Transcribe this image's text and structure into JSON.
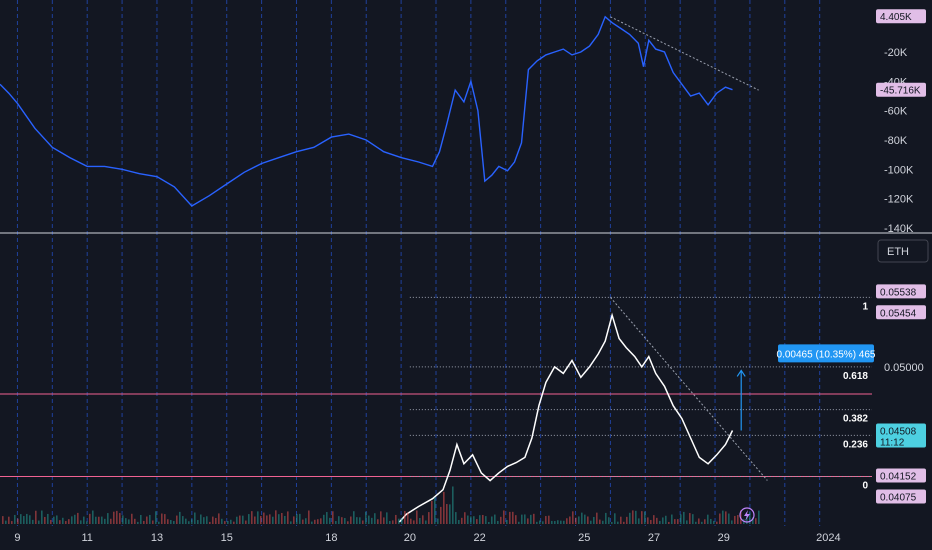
{
  "chart_data": [
    {
      "type": "line",
      "title": "",
      "xlabel": "",
      "ylabel": "",
      "ylim": [
        -140000,
        10000
      ],
      "y_ticks": [
        "-20K",
        "-40K",
        "-60K",
        "-80K",
        "-100K",
        "-120K",
        "-140K"
      ],
      "y_tick_values": [
        -20000,
        -40000,
        -60000,
        -80000,
        -100000,
        -120000,
        -140000
      ],
      "price_tags": [
        {
          "label": "4.405K",
          "value": 4405,
          "color": "#e1bee7"
        },
        {
          "label": "-45.716K",
          "value": -45716,
          "color": "#e1bee7"
        }
      ],
      "series": [
        {
          "color": "#2962ff",
          "points": [
            [
              0,
              -42000
            ],
            [
              0.5,
              -48000
            ],
            [
              1,
              -55000
            ],
            [
              2,
              -72000
            ],
            [
              3,
              -85000
            ],
            [
              4,
              -92000
            ],
            [
              5,
              -98000
            ],
            [
              6,
              -98000
            ],
            [
              7,
              -100000
            ],
            [
              8,
              -103000
            ],
            [
              9,
              -105000
            ],
            [
              10,
              -112000
            ],
            [
              11,
              -125000
            ],
            [
              12,
              -118000
            ],
            [
              13,
              -110000
            ],
            [
              14,
              -102000
            ],
            [
              15,
              -96000
            ],
            [
              16,
              -92000
            ],
            [
              17,
              -88000
            ],
            [
              18,
              -85000
            ],
            [
              19,
              -78000
            ],
            [
              20,
              -76000
            ],
            [
              21,
              -80000
            ],
            [
              22,
              -88000
            ],
            [
              23,
              -92000
            ],
            [
              24,
              -95000
            ],
            [
              24.8,
              -98000
            ],
            [
              25.2,
              -88000
            ],
            [
              25.6,
              -70000
            ],
            [
              26.1,
              -46000
            ],
            [
              26.6,
              -54000
            ],
            [
              27,
              -40000
            ],
            [
              27.4,
              -60000
            ],
            [
              27.8,
              -108000
            ],
            [
              28.2,
              -104000
            ],
            [
              28.6,
              -98000
            ],
            [
              29.1,
              -101000
            ],
            [
              29.5,
              -95000
            ],
            [
              29.9,
              -82000
            ],
            [
              30.3,
              -32000
            ],
            [
              30.8,
              -26000
            ],
            [
              31.3,
              -22000
            ],
            [
              31.8,
              -20000
            ],
            [
              32.3,
              -18000
            ],
            [
              32.8,
              -22000
            ],
            [
              33.3,
              -20000
            ],
            [
              33.8,
              -16000
            ],
            [
              34.3,
              -8000
            ],
            [
              34.7,
              4000
            ],
            [
              35.1,
              0
            ],
            [
              35.6,
              -4000
            ],
            [
              36.1,
              -8000
            ],
            [
              36.6,
              -14000
            ],
            [
              36.9,
              -30000
            ],
            [
              37.2,
              -12000
            ],
            [
              37.6,
              -18000
            ],
            [
              38.1,
              -20000
            ],
            [
              38.6,
              -34000
            ],
            [
              39.1,
              -42000
            ],
            [
              39.6,
              -50000
            ],
            [
              40.1,
              -48000
            ],
            [
              40.6,
              -56000
            ],
            [
              41.1,
              -48000
            ],
            [
              41.6,
              -44000
            ],
            [
              42,
              -45716
            ]
          ]
        }
      ],
      "trendline": {
        "from": [
          35,
          4000
        ],
        "to": [
          43.5,
          -46000
        ]
      }
    },
    {
      "type": "line",
      "title": "",
      "xlabel": "",
      "ylabel": "",
      "symbol": "ETH",
      "ylim": [
        0.038,
        0.0575
      ],
      "y_ticks": [
        "0.05000"
      ],
      "y_tick_values": [
        0.05
      ],
      "price_tags": [
        {
          "label": "0.05538",
          "value": 0.05538,
          "color": "#e1bee7"
        },
        {
          "label": "0.05454",
          "value": 0.05454,
          "color": "#e1bee7"
        },
        {
          "label": "0.04508",
          "value": 0.04508,
          "sub": "11:12",
          "color": "#4dd0e1"
        },
        {
          "label": "0.04152",
          "value": 0.04152,
          "color": "#e1bee7"
        },
        {
          "label": "0.04075",
          "value": 0.04075,
          "color": "#e1bee7"
        }
      ],
      "fib_levels": [
        {
          "label": "1",
          "value": 0.05538
        },
        {
          "label": "0.618",
          "value": 0.05
        },
        {
          "label": "0.382",
          "value": 0.0467
        },
        {
          "label": "0.236",
          "value": 0.0447
        },
        {
          "label": "0",
          "value": 0.04152
        }
      ],
      "horizontal_lines": [
        {
          "value": 0.0479,
          "color": "#f06292"
        },
        {
          "value": 0.04152,
          "color": "#f06292"
        }
      ],
      "measurement": {
        "label": "0.00465 (10.35%) 465",
        "from": 0.04508,
        "to": 0.04973
      },
      "series": [
        {
          "color": "#ffffff",
          "points": [
            [
              22.9,
              0.038
            ],
            [
              23.3,
              0.0386
            ],
            [
              24,
              0.0392
            ],
            [
              24.8,
              0.0398
            ],
            [
              25.4,
              0.0405
            ],
            [
              25.8,
              0.042
            ],
            [
              26.2,
              0.044
            ],
            [
              26.6,
              0.0425
            ],
            [
              27.1,
              0.0432
            ],
            [
              27.6,
              0.0418
            ],
            [
              28.1,
              0.0412
            ],
            [
              28.6,
              0.0418
            ],
            [
              29.1,
              0.0423
            ],
            [
              29.6,
              0.0426
            ],
            [
              30.1,
              0.043
            ],
            [
              30.5,
              0.0445
            ],
            [
              30.9,
              0.047
            ],
            [
              31.3,
              0.0488
            ],
            [
              31.8,
              0.05
            ],
            [
              32.3,
              0.0495
            ],
            [
              32.8,
              0.0505
            ],
            [
              33.3,
              0.0492
            ],
            [
              33.8,
              0.05
            ],
            [
              34.3,
              0.051
            ],
            [
              34.7,
              0.052
            ],
            [
              35.1,
              0.054
            ],
            [
              35.5,
              0.0522
            ],
            [
              35.9,
              0.0515
            ],
            [
              36.4,
              0.0508
            ],
            [
              36.8,
              0.05
            ],
            [
              37.2,
              0.0508
            ],
            [
              37.6,
              0.0495
            ],
            [
              38.1,
              0.0485
            ],
            [
              38.6,
              0.047
            ],
            [
              39.1,
              0.046
            ],
            [
              39.6,
              0.0445
            ],
            [
              40.1,
              0.043
            ],
            [
              40.6,
              0.0425
            ],
            [
              41.1,
              0.0432
            ],
            [
              41.6,
              0.044
            ],
            [
              42,
              0.04508
            ]
          ]
        }
      ],
      "trendline": {
        "from": [
          35,
          0.05538
        ],
        "to": [
          44,
          0.04152
        ]
      }
    }
  ],
  "x_axis": {
    "ticks": [
      {
        "label": "9",
        "x": 1
      },
      {
        "label": "11",
        "x": 5
      },
      {
        "label": "13",
        "x": 9
      },
      {
        "label": "15",
        "x": 13
      },
      {
        "label": "18",
        "x": 19
      },
      {
        "label": "20",
        "x": 23.5
      },
      {
        "label": "22",
        "x": 27.5
      },
      {
        "label": "25",
        "x": 33.5
      },
      {
        "label": "27",
        "x": 37.5
      },
      {
        "label": "29",
        "x": 41.5
      },
      {
        "label": "2024",
        "x": 47.5
      }
    ],
    "xlim": [
      0,
      50
    ]
  },
  "colors": {
    "background": "#131722",
    "grid_dash": "#2962ff",
    "axis_text": "#d1d4dc",
    "volume": "#ef5350"
  }
}
